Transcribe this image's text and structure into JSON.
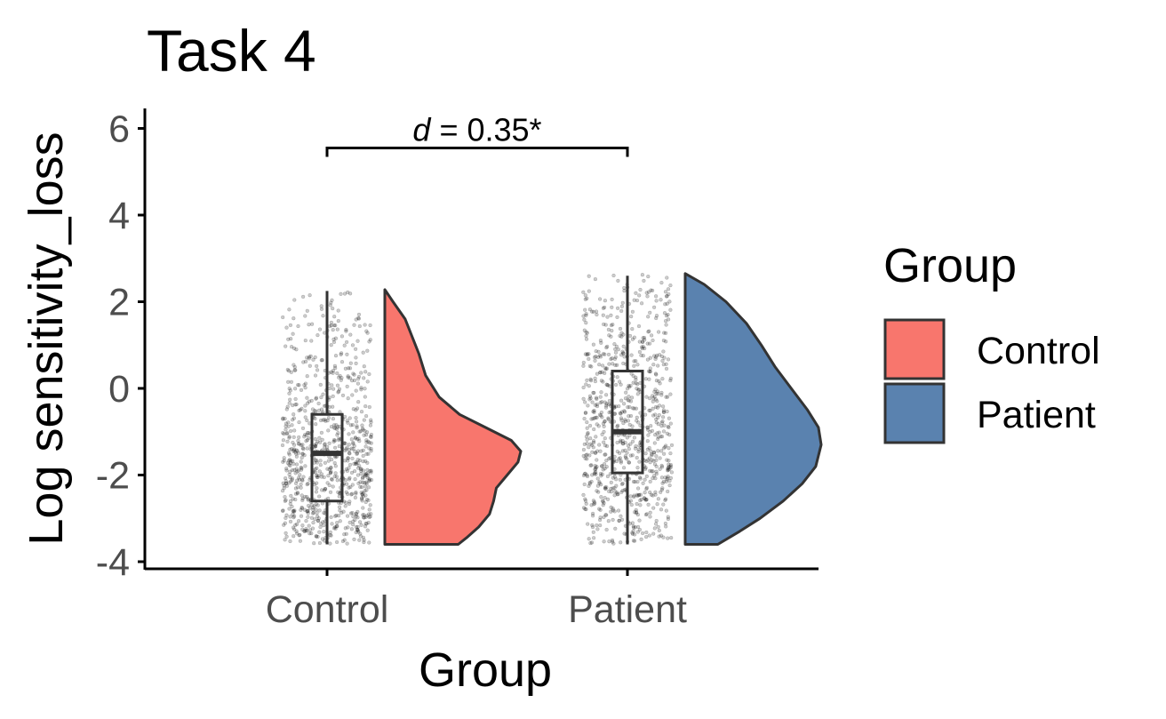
{
  "chart_data": {
    "type": "raincloud",
    "title": "Task 4",
    "xlabel": "Group",
    "ylabel": "Log sensitivity_loss",
    "categories": [
      "Control",
      "Patient"
    ],
    "ylim": [
      -4.1,
      6.5
    ],
    "yticks": [
      -4,
      -2,
      0,
      2,
      4,
      6
    ],
    "ytick_labels": [
      "-4",
      "-2",
      "0",
      "2",
      "4",
      "6"
    ],
    "legend": {
      "title": "Group",
      "position": "right",
      "entries": [
        {
          "label": "Control",
          "color": "#F8766D"
        },
        {
          "label": "Patient",
          "color": "#5A82AF"
        }
      ]
    },
    "annotation": {
      "symbol": "d",
      "text": " = 0.35*",
      "between": [
        "Control",
        "Patient"
      ],
      "y": 5.55
    },
    "series": [
      {
        "name": "Control",
        "color": "#F8766D",
        "box": {
          "whisker_low": -3.6,
          "q1": -2.6,
          "median": -1.5,
          "q3": -0.6,
          "whisker_high": 2.25
        },
        "range": [
          -3.6,
          2.28
        ],
        "density": [
          {
            "y": -3.6,
            "d": 0.54
          },
          {
            "y": -3.45,
            "d": 0.6
          },
          {
            "y": -3.2,
            "d": 0.69
          },
          {
            "y": -2.9,
            "d": 0.77
          },
          {
            "y": -2.6,
            "d": 0.8
          },
          {
            "y": -2.3,
            "d": 0.82
          },
          {
            "y": -2.0,
            "d": 0.9
          },
          {
            "y": -1.7,
            "d": 0.98
          },
          {
            "y": -1.45,
            "d": 1.0
          },
          {
            "y": -1.2,
            "d": 0.93
          },
          {
            "y": -0.9,
            "d": 0.74
          },
          {
            "y": -0.6,
            "d": 0.55
          },
          {
            "y": -0.2,
            "d": 0.4
          },
          {
            "y": 0.3,
            "d": 0.3
          },
          {
            "y": 0.8,
            "d": 0.25
          },
          {
            "y": 1.2,
            "d": 0.2
          },
          {
            "y": 1.6,
            "d": 0.15
          },
          {
            "y": 2.0,
            "d": 0.06
          },
          {
            "y": 2.28,
            "d": 0.0
          }
        ]
      },
      {
        "name": "Patient",
        "color": "#5A82AF",
        "box": {
          "whisker_low": -3.6,
          "q1": -1.95,
          "median": -1.0,
          "q3": 0.4,
          "whisker_high": 2.6
        },
        "range": [
          -3.6,
          2.65
        ],
        "density": [
          {
            "y": -3.6,
            "d": 0.24
          },
          {
            "y": -3.3,
            "d": 0.4
          },
          {
            "y": -3.0,
            "d": 0.55
          },
          {
            "y": -2.6,
            "d": 0.72
          },
          {
            "y": -2.2,
            "d": 0.86
          },
          {
            "y": -1.8,
            "d": 0.96
          },
          {
            "y": -1.3,
            "d": 1.0
          },
          {
            "y": -0.9,
            "d": 0.98
          },
          {
            "y": -0.5,
            "d": 0.9
          },
          {
            "y": 0.0,
            "d": 0.78
          },
          {
            "y": 0.5,
            "d": 0.66
          },
          {
            "y": 1.0,
            "d": 0.56
          },
          {
            "y": 1.5,
            "d": 0.45
          },
          {
            "y": 2.0,
            "d": 0.3
          },
          {
            "y": 2.4,
            "d": 0.14
          },
          {
            "y": 2.65,
            "d": 0.0
          }
        ]
      }
    ]
  }
}
